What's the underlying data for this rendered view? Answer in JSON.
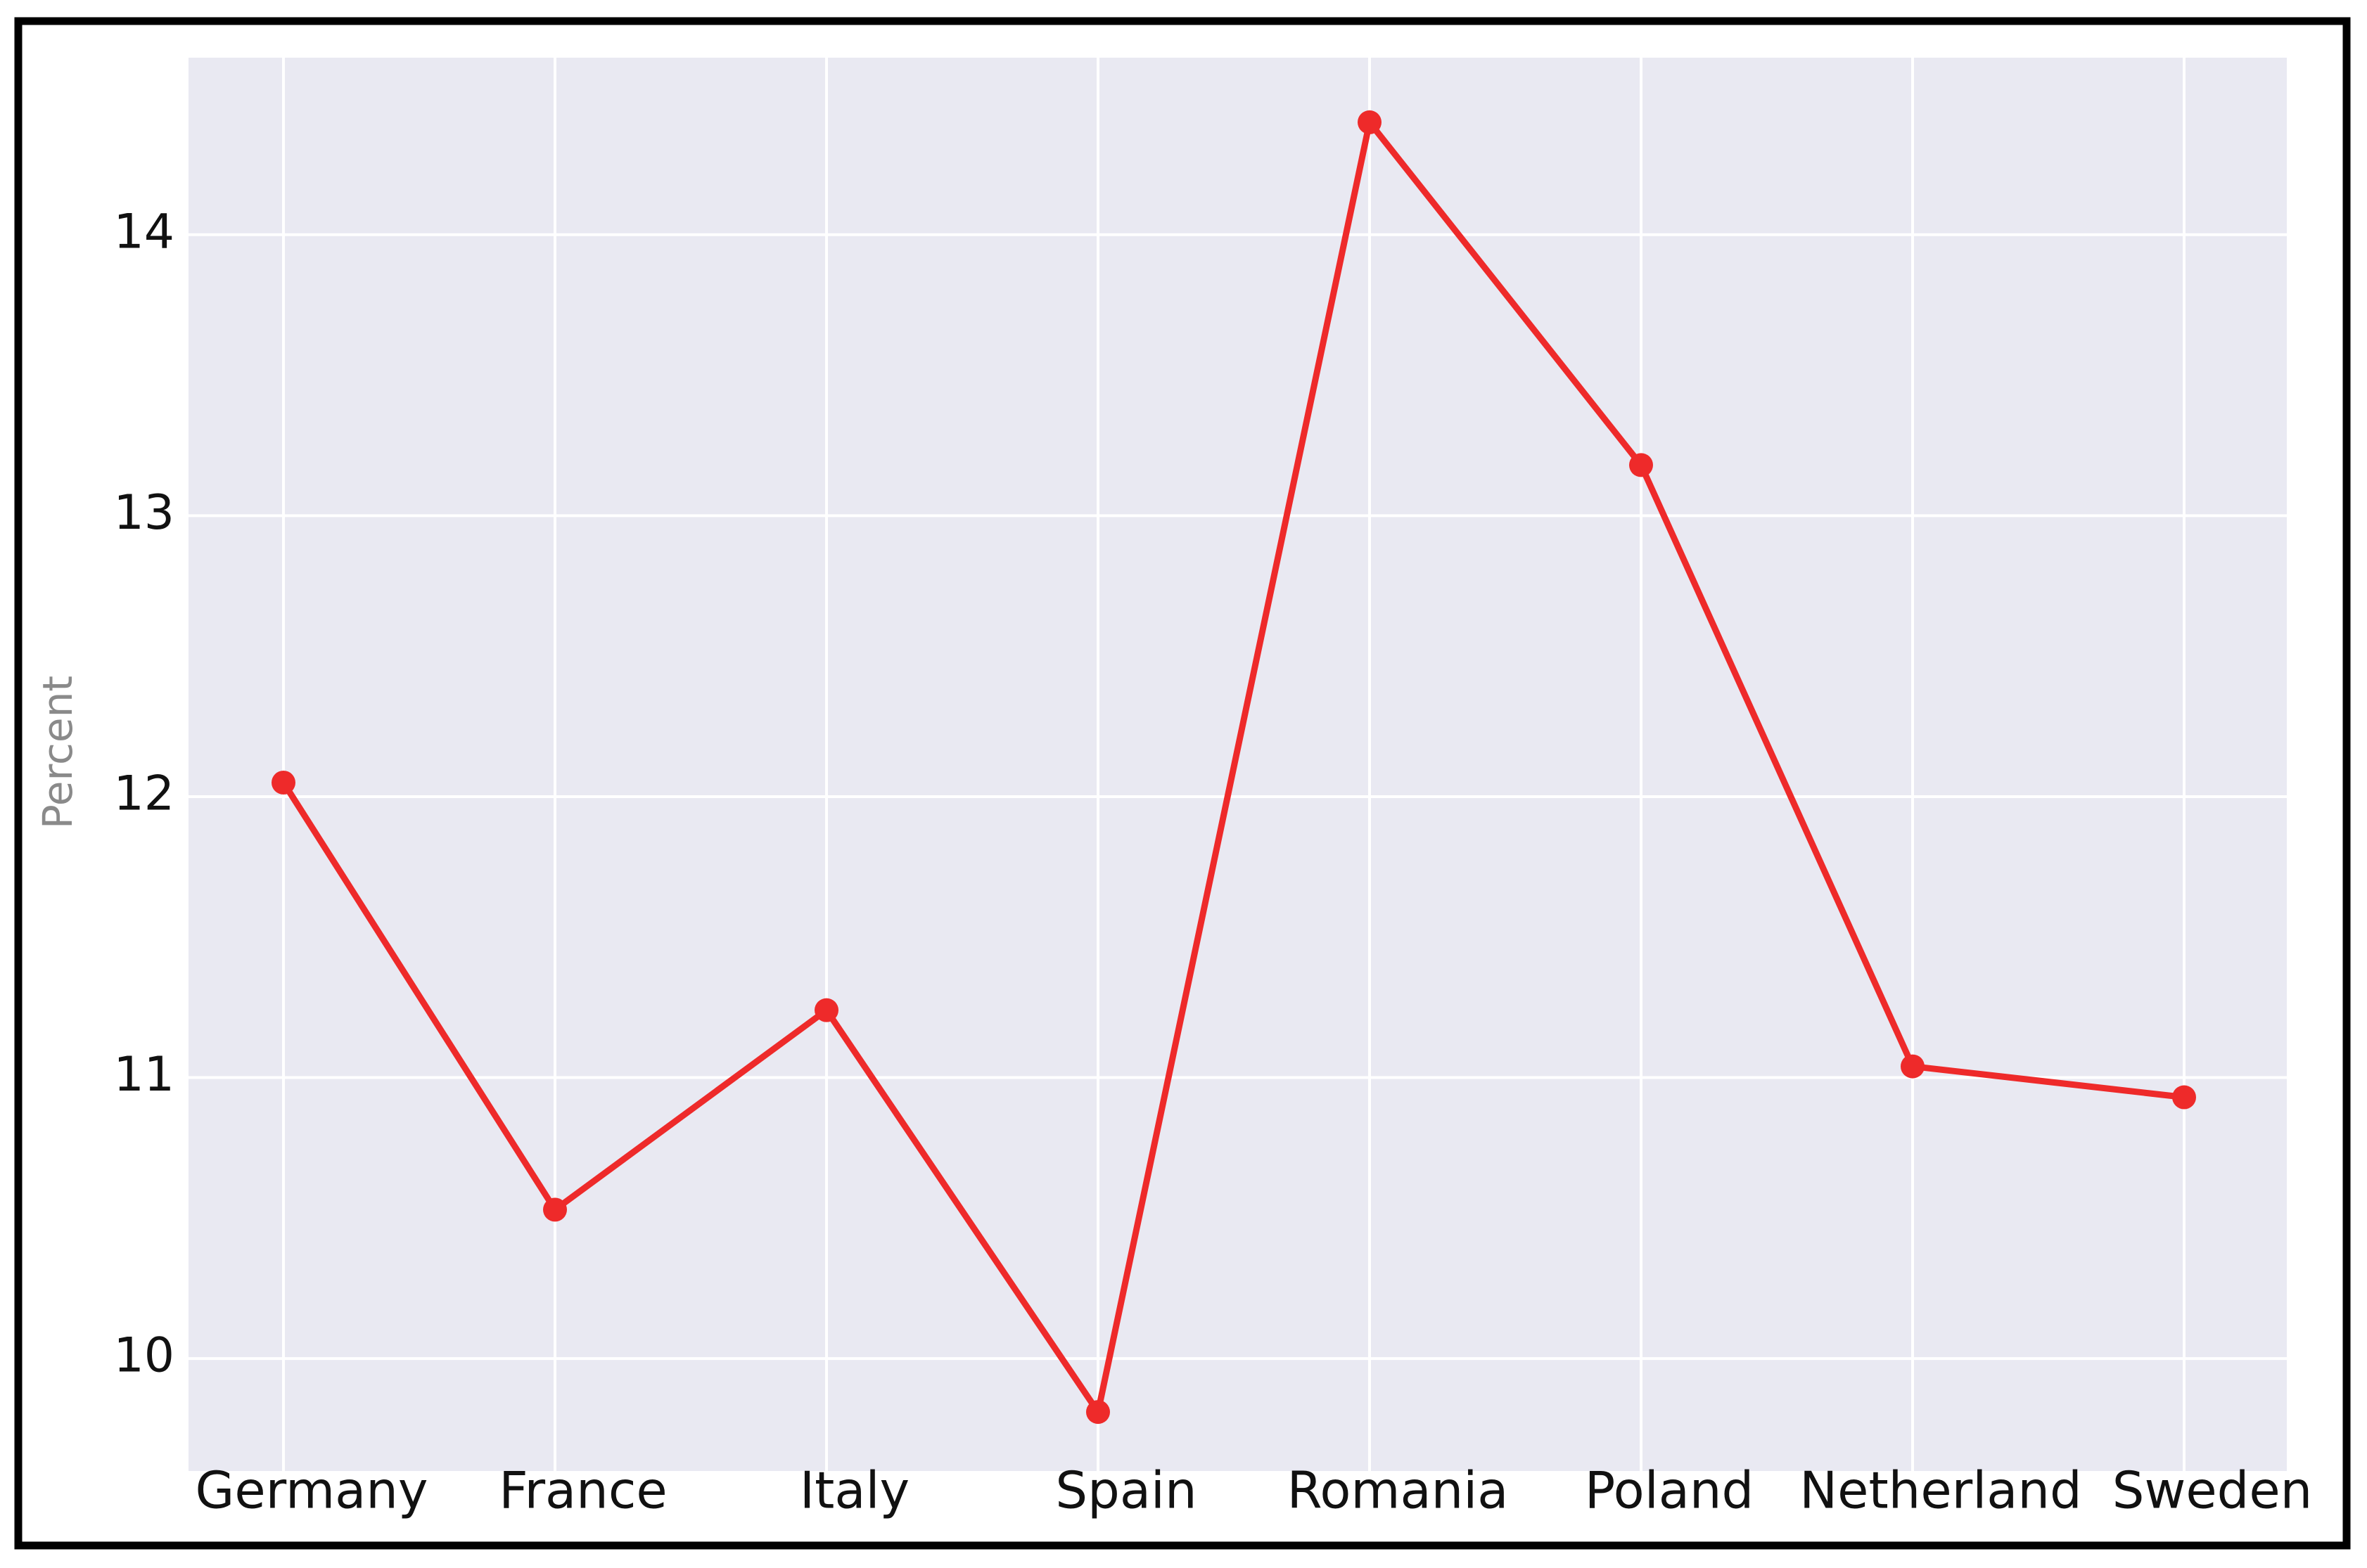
{
  "chart_data": {
    "type": "line",
    "y_label": "Percent",
    "categories": [
      "Germany",
      "France",
      "Italy",
      "Spain",
      "Romania",
      "Poland",
      "Netherland",
      "Sweden"
    ],
    "values": [
      12.05,
      10.53,
      11.24,
      9.81,
      14.4,
      13.18,
      11.04,
      10.93
    ],
    "color": "#ee2a2a",
    "ylim": [
      9.6,
      14.63
    ],
    "yticks": [
      10,
      11,
      12,
      13,
      14
    ],
    "grid": true
  }
}
